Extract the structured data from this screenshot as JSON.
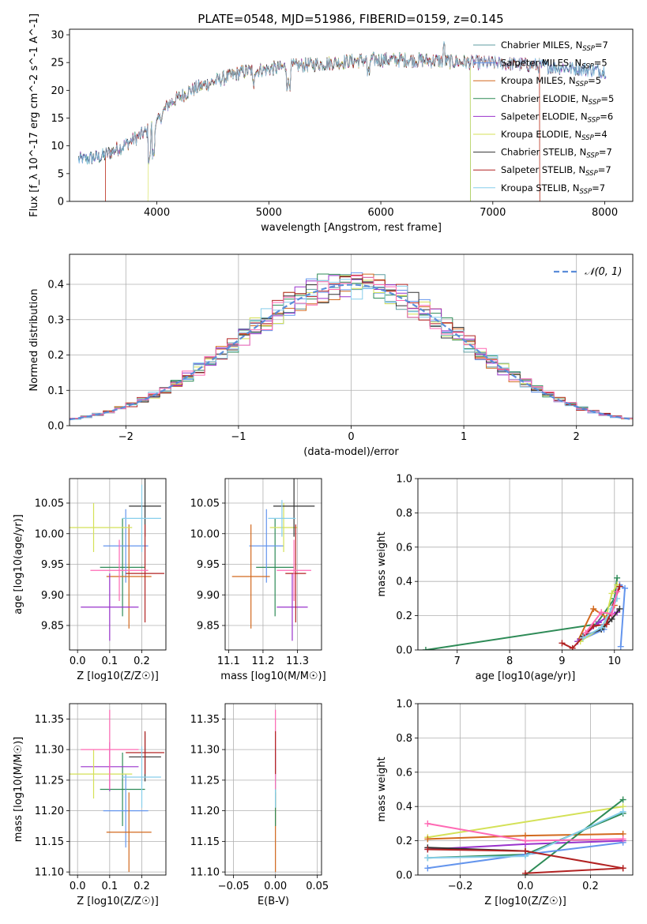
{
  "chart_data": [
    {
      "type": "line",
      "title": "PLATE=0548, MJD=51986, FIBERID=0159, z=0.145",
      "xlabel": "wavelength [Angstrom, rest frame]",
      "ylabel": "Flux [f_λ 10^-17 erg cm^-2 s^-1 A^-1]",
      "xlim": [
        3220,
        8250
      ],
      "ylim": [
        0,
        31
      ],
      "xticks": [
        4000,
        5000,
        6000,
        7000,
        8000
      ],
      "yticks": [
        0,
        5,
        10,
        15,
        20,
        25,
        30
      ],
      "legend_position": "top-right",
      "continuum": {
        "x": [
          3300,
          3500,
          3700,
          3900,
          4000,
          4100,
          4300,
          4500,
          4800,
          5000,
          5300,
          5600,
          5900,
          6200,
          6500,
          6800,
          7100,
          7400,
          7700,
          8000
        ],
        "y": [
          7.5,
          8.0,
          10.0,
          12.5,
          14.0,
          17.5,
          20.0,
          21.5,
          23.5,
          23.8,
          24.5,
          25.0,
          25.5,
          25.5,
          25.3,
          25.0,
          24.8,
          24.5,
          24.0,
          23.5
        ]
      },
      "series": [
        {
          "name": "Chabrier MILES",
          "nssp": "7",
          "color": "#5f9ea0"
        },
        {
          "name": "Salpeter MILES",
          "nssp": "5",
          "color": "#6495ed"
        },
        {
          "name": "Kroupa MILES",
          "nssp": "5",
          "color": "#d2691e"
        },
        {
          "name": "Chabrier ELODIE",
          "nssp": "5",
          "color": "#2e8b57"
        },
        {
          "name": "Salpeter ELODIE",
          "nssp": "6",
          "color": "#9932cc"
        },
        {
          "name": "Kroupa ELODIE",
          "nssp": "4",
          "color": "#d4e157"
        },
        {
          "name": "Chabrier STELIB",
          "nssp": "7",
          "color": "#333333"
        },
        {
          "name": "Salpeter STELIB",
          "nssp": "7",
          "color": "#b22222"
        },
        {
          "name": "Kroupa STELIB",
          "nssp": "7",
          "color": "#87ceeb"
        }
      ]
    },
    {
      "type": "line",
      "title": "",
      "xlabel": "(data-model)/error",
      "ylabel": "Normed distribution",
      "xlim": [
        -2.5,
        2.5
      ],
      "ylim": [
        0,
        0.485
      ],
      "xticks": [
        -2,
        -1,
        0,
        1,
        2
      ],
      "yticks": [
        0.0,
        0.1,
        0.2,
        0.3,
        0.4
      ],
      "grid": true,
      "legend_position": "top-right",
      "gaussian_label": "𝒩(0, 1)",
      "gaussian_color": "#5b8dd9",
      "bin_width": 0.1,
      "series_colors": [
        "#5f9ea0",
        "#6495ed",
        "#d2691e",
        "#2e8b57",
        "#9932cc",
        "#d4e157",
        "#333333",
        "#b22222",
        "#87ceeb",
        "#ff69b4"
      ]
    },
    {
      "type": "scatter",
      "xlabel": "Z [log10(Z/Z☉)]",
      "ylabel": "age  [log10(age/yr)]",
      "xlim": [
        -0.025,
        0.275
      ],
      "ylim": [
        9.81,
        10.09
      ],
      "xticks": [
        0.0,
        0.1,
        0.2
      ],
      "yticks": [
        9.85,
        9.9,
        9.95,
        10.0,
        10.05
      ],
      "grid": true,
      "points": [
        {
          "x": 0.14,
          "xerr": 0.07,
          "y": 9.945,
          "yerr": 0.08,
          "color": "#2e8b57"
        },
        {
          "x": 0.15,
          "xerr": 0.07,
          "y": 9.98,
          "yerr": 0.06,
          "color": "#6495ed"
        },
        {
          "x": 0.16,
          "xerr": 0.07,
          "y": 9.93,
          "yerr": 0.085,
          "color": "#d2691e"
        },
        {
          "x": 0.1,
          "xerr": 0.09,
          "y": 9.88,
          "yerr": 0.055,
          "color": "#9932cc"
        },
        {
          "x": 0.05,
          "xerr": 0.12,
          "y": 10.01,
          "yerr": 0.04,
          "color": "#d4e157"
        },
        {
          "x": 0.21,
          "xerr": 0.05,
          "y": 10.045,
          "yerr": 0.05,
          "color": "#333333"
        },
        {
          "x": 0.21,
          "xerr": 0.06,
          "y": 9.935,
          "yerr": 0.08,
          "color": "#b22222"
        },
        {
          "x": 0.2,
          "xerr": 0.06,
          "y": 10.025,
          "yerr": 0.055,
          "color": "#87ceeb"
        },
        {
          "x": 0.13,
          "xerr": 0.09,
          "y": 9.94,
          "yerr": 0.05,
          "color": "#ff69b4"
        }
      ]
    },
    {
      "type": "scatter",
      "xlabel": "mass [log10(M/M☉)]",
      "ylabel": "",
      "xlim": [
        11.09,
        11.37
      ],
      "ylim": [
        9.81,
        10.09
      ],
      "xticks": [
        11.1,
        11.2,
        11.3
      ],
      "yticks": [
        9.85,
        9.9,
        9.95,
        10.0,
        10.05
      ],
      "grid": true,
      "points": [
        {
          "x": 11.235,
          "xerr": 0.055,
          "y": 9.945,
          "yerr": 0.08,
          "color": "#2e8b57"
        },
        {
          "x": 11.21,
          "xerr": 0.05,
          "y": 9.98,
          "yerr": 0.06,
          "color": "#6495ed"
        },
        {
          "x": 11.165,
          "xerr": 0.055,
          "y": 9.93,
          "yerr": 0.085,
          "color": "#d2691e"
        },
        {
          "x": 11.285,
          "xerr": 0.045,
          "y": 9.88,
          "yerr": 0.055,
          "color": "#9932cc"
        },
        {
          "x": 11.26,
          "xerr": 0.04,
          "y": 10.01,
          "yerr": 0.04,
          "color": "#d4e157"
        },
        {
          "x": 11.29,
          "xerr": 0.06,
          "y": 10.045,
          "yerr": 0.05,
          "color": "#333333"
        },
        {
          "x": 11.295,
          "xerr": 0.03,
          "y": 9.935,
          "yerr": 0.08,
          "color": "#b22222"
        },
        {
          "x": 11.255,
          "xerr": 0.04,
          "y": 10.025,
          "yerr": 0.03,
          "color": "#87ceeb"
        },
        {
          "x": 11.29,
          "xerr": 0.05,
          "y": 9.94,
          "yerr": 0.05,
          "color": "#ff69b4"
        }
      ]
    },
    {
      "type": "line",
      "xlabel": "age  [log10(age/yr)]",
      "ylabel": "mass weight",
      "xlim": [
        6.25,
        10.35
      ],
      "ylim": [
        0,
        1.0
      ],
      "xticks": [
        7,
        8,
        9,
        10
      ],
      "yticks": [
        0.0,
        0.2,
        0.4,
        0.6,
        0.8,
        1.0
      ],
      "grid": true,
      "series": [
        {
          "color": "#2e8b57",
          "x": [
            6.4,
            9.65,
            10.0,
            10.05
          ],
          "y": [
            0.0,
            0.15,
            0.3,
            0.42
          ]
        },
        {
          "color": "#6495ed",
          "x": [
            9.3,
            9.8,
            10.1,
            10.2,
            10.12
          ],
          "y": [
            0.05,
            0.12,
            0.38,
            0.36,
            0.02
          ]
        },
        {
          "color": "#d2691e",
          "x": [
            9.3,
            9.6,
            9.85,
            10.0
          ],
          "y": [
            0.05,
            0.24,
            0.19,
            0.26
          ]
        },
        {
          "color": "#9932cc",
          "x": [
            9.3,
            9.7,
            9.9,
            10.05
          ],
          "y": [
            0.05,
            0.16,
            0.2,
            0.22
          ]
        },
        {
          "color": "#d4e157",
          "x": [
            9.35,
            9.8,
            9.95,
            10.05
          ],
          "y": [
            0.05,
            0.14,
            0.33,
            0.38
          ]
        },
        {
          "color": "#333333",
          "x": [
            9.4,
            9.75,
            9.95,
            10.1
          ],
          "y": [
            0.08,
            0.12,
            0.18,
            0.24
          ]
        },
        {
          "color": "#b22222",
          "x": [
            9.0,
            9.2,
            9.6,
            9.85,
            9.9,
            10.1
          ],
          "y": [
            0.04,
            0.01,
            0.14,
            0.15,
            0.2,
            0.37
          ]
        },
        {
          "color": "#87ceeb",
          "x": [
            9.4,
            9.75,
            9.95,
            10.05
          ],
          "y": [
            0.07,
            0.13,
            0.24,
            0.3
          ]
        },
        {
          "color": "#ff69b4",
          "x": [
            9.45,
            9.75,
            9.95,
            10.05
          ],
          "y": [
            0.1,
            0.22,
            0.21,
            0.34
          ]
        }
      ]
    },
    {
      "type": "scatter",
      "xlabel": "Z [log10(Z/Z☉)]",
      "ylabel": "mass [log10(M/M☉)]",
      "xlim": [
        -0.025,
        0.275
      ],
      "ylim": [
        11.095,
        11.375
      ],
      "xticks": [
        0.0,
        0.1,
        0.2
      ],
      "yticks": [
        11.1,
        11.15,
        11.2,
        11.25,
        11.3,
        11.35
      ],
      "grid": true,
      "points": [
        {
          "x": 0.14,
          "xerr": 0.07,
          "y": 11.235,
          "yerr": 0.06,
          "color": "#2e8b57"
        },
        {
          "x": 0.15,
          "xerr": 0.07,
          "y": 11.2,
          "yerr": 0.06,
          "color": "#6495ed"
        },
        {
          "x": 0.16,
          "xerr": 0.07,
          "y": 11.165,
          "yerr": 0.065,
          "color": "#d2691e"
        },
        {
          "x": 0.1,
          "xerr": 0.09,
          "y": 11.272,
          "yerr": 0.04,
          "color": "#9932cc"
        },
        {
          "x": 0.05,
          "xerr": 0.12,
          "y": 11.26,
          "yerr": 0.04,
          "color": "#d4e157"
        },
        {
          "x": 0.21,
          "xerr": 0.05,
          "y": 11.288,
          "yerr": 0.04,
          "color": "#333333"
        },
        {
          "x": 0.21,
          "xerr": 0.06,
          "y": 11.295,
          "yerr": 0.035,
          "color": "#b22222"
        },
        {
          "x": 0.2,
          "xerr": 0.06,
          "y": 11.255,
          "yerr": 0.05,
          "color": "#87ceeb"
        },
        {
          "x": 0.1,
          "xerr": 0.09,
          "y": 11.3,
          "yerr": 0.065,
          "color": "#ff69b4"
        }
      ]
    },
    {
      "type": "scatter",
      "xlabel": "E(B-V)",
      "ylabel": "",
      "xlim": [
        -0.06,
        0.055
      ],
      "ylim": [
        11.095,
        11.375
      ],
      "xticks": [
        -0.05,
        0.0,
        0.05
      ],
      "yticks": [
        11.1,
        11.15,
        11.2,
        11.25,
        11.3,
        11.35
      ],
      "grid": true,
      "points": [
        {
          "x": 0.0,
          "xerr": 0.0,
          "y": 11.165,
          "yerr": 0.065,
          "color": "#d2691e"
        },
        {
          "x": 0.0,
          "xerr": 0.0,
          "y": 11.235,
          "yerr": 0.06,
          "color": "#2e8b57"
        },
        {
          "x": 0.0,
          "xerr": 0.0,
          "y": 11.255,
          "yerr": 0.05,
          "color": "#87ceeb"
        },
        {
          "x": 0.0,
          "xerr": 0.0,
          "y": 11.3,
          "yerr": 0.065,
          "color": "#ff69b4"
        },
        {
          "x": 0.0,
          "xerr": 0.0,
          "y": 11.295,
          "yerr": 0.035,
          "color": "#b22222"
        }
      ]
    },
    {
      "type": "line",
      "xlabel": "Z [log10(Z/Z☉)]",
      "ylabel": "mass weight",
      "xlim": [
        -0.33,
        0.33
      ],
      "ylim": [
        0,
        1.0
      ],
      "xticks": [
        -0.2,
        0.0,
        0.2
      ],
      "yticks": [
        0.0,
        0.2,
        0.4,
        0.6,
        0.8,
        1.0
      ],
      "grid": true,
      "series": [
        {
          "color": "#d4e157",
          "x": [
            -0.3,
            0.3
          ],
          "y": [
            0.22,
            0.4
          ]
        },
        {
          "color": "#d2691e",
          "x": [
            -0.3,
            0.0,
            0.3
          ],
          "y": [
            0.21,
            0.23,
            0.24
          ]
        },
        {
          "color": "#9932cc",
          "x": [
            -0.3,
            0.0,
            0.3
          ],
          "y": [
            0.15,
            0.18,
            0.2
          ]
        },
        {
          "color": "#333333",
          "x": [
            -0.3,
            0.0
          ],
          "y": [
            0.16,
            0.14
          ]
        },
        {
          "color": "#2e8b57",
          "x": [
            -0.3,
            0.0,
            0.3
          ],
          "y": [
            0.1,
            0.12,
            0.36
          ]
        },
        {
          "color": "#2e8b57",
          "x": [
            0.0,
            0.3
          ],
          "y": [
            0.0,
            0.44
          ]
        },
        {
          "color": "#6495ed",
          "x": [
            -0.3,
            0.0,
            0.3
          ],
          "y": [
            0.04,
            0.12,
            0.19
          ]
        },
        {
          "color": "#87ceeb",
          "x": [
            -0.3,
            0.0,
            0.3
          ],
          "y": [
            0.1,
            0.11,
            0.37
          ]
        },
        {
          "color": "#b22222",
          "x": [
            -0.3,
            0.0,
            0.3
          ],
          "y": [
            0.15,
            0.14,
            0.04
          ]
        },
        {
          "color": "#b22222",
          "x": [
            0.0,
            0.3
          ],
          "y": [
            0.01,
            0.04
          ]
        },
        {
          "color": "#ff69b4",
          "x": [
            -0.3,
            0.0,
            0.3
          ],
          "y": [
            0.3,
            0.2,
            0.21
          ]
        }
      ]
    }
  ]
}
